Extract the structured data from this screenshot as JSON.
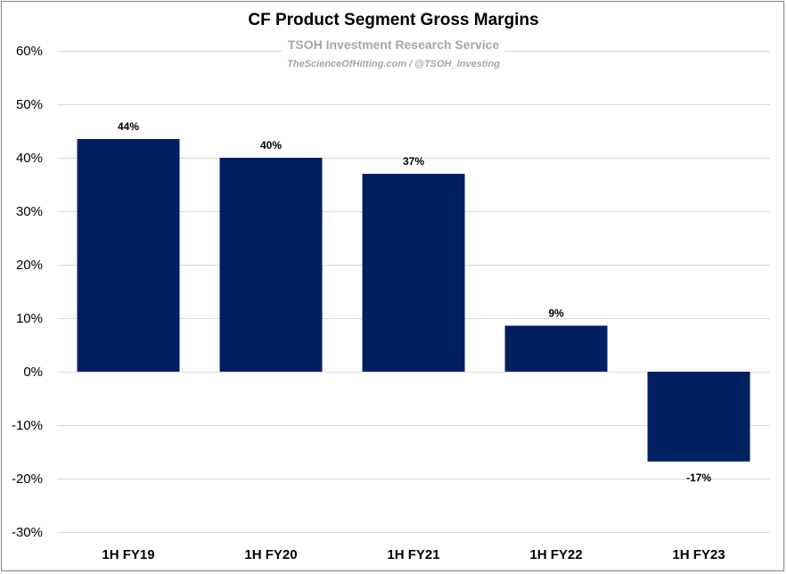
{
  "chart_data": {
    "type": "bar",
    "title": "CF Product Segment Gross Margins",
    "subtitle": "TSOH Investment Research Service",
    "credit": "TheScienceOfHitting.com / @TSOH_Investing",
    "categories": [
      "1H FY19",
      "1H FY20",
      "1H FY21",
      "1H FY22",
      "1H FY23"
    ],
    "values": [
      43.5,
      40,
      37,
      8.6,
      -16.8
    ],
    "data_labels": [
      "44%",
      "40%",
      "37%",
      "9%",
      "-17%"
    ],
    "ylim": [
      -30,
      60
    ],
    "yticks": [
      -30,
      -20,
      -10,
      0,
      10,
      20,
      30,
      40,
      50,
      60
    ],
    "ytick_labels": [
      "-30%",
      "-20%",
      "-10%",
      "0%",
      "10%",
      "20%",
      "30%",
      "40%",
      "50%",
      "60%"
    ],
    "grid": true,
    "legend": "none",
    "bar_color": "#002060",
    "grid_color": "#d9d9d9"
  }
}
